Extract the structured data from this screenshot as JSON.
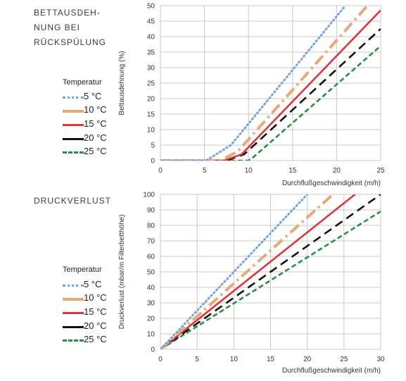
{
  "colors": {
    "c5": "#7ba3db",
    "c10": "#e8a877",
    "c15": "#d9363e",
    "c20": "#111111",
    "c25": "#2e8b45",
    "grid": "#c8c8c8",
    "axis": "#888888"
  },
  "sections": {
    "top_title_lines": [
      "BETTAUSDEH-",
      "NUNG BEI",
      "RÜCKSPÜLUNG"
    ],
    "bottom_title": "DRUCKVERLUST"
  },
  "legend": {
    "title": "Temperatur",
    "items": [
      "5 °C",
      "10 °C",
      "15 °C",
      "20 °C",
      "25 °C"
    ]
  },
  "chart_data": [
    {
      "type": "line",
      "xlabel": "Durchflußgeschwindigkeit (m/h)",
      "ylabel": "Bettausdehnung (%)",
      "xlim": [
        0,
        25
      ],
      "ylim": [
        0,
        50
      ],
      "xticks": [
        "0",
        "5",
        "10",
        "15",
        "20",
        "25"
      ],
      "yticks": [
        "0",
        "5",
        "10",
        "15",
        "20",
        "25",
        "30",
        "35",
        "40",
        "45",
        "50"
      ],
      "grid": true,
      "series": [
        {
          "name": "5 °C",
          "points": [
            [
              0,
              0
            ],
            [
              5.2,
              0
            ],
            [
              8,
              5
            ],
            [
              21,
              50
            ]
          ]
        },
        {
          "name": "10 °C",
          "points": [
            [
              0,
              0
            ],
            [
              6.8,
              0
            ],
            [
              8.8,
              3
            ],
            [
              23.5,
              50
            ]
          ]
        },
        {
          "name": "15 °C",
          "points": [
            [
              0,
              0
            ],
            [
              7.2,
              0
            ],
            [
              9.2,
              2
            ],
            [
              25,
              48.5
            ]
          ]
        },
        {
          "name": "20 °C",
          "points": [
            [
              0,
              0
            ],
            [
              7.5,
              0
            ],
            [
              9.5,
              2
            ],
            [
              25,
              42.5
            ]
          ]
        },
        {
          "name": "25 °C",
          "points": [
            [
              0,
              0
            ],
            [
              10,
              0
            ],
            [
              10.5,
              1
            ],
            [
              25,
              37
            ]
          ]
        }
      ]
    },
    {
      "type": "line",
      "xlabel": "Durchflußgeschwindigkeit (m/h)",
      "ylabel": "Druckverlust  (mbar/m Filterbetthöhe)",
      "xlim": [
        0,
        30
      ],
      "ylim": [
        0,
        100
      ],
      "xticks": [
        "0",
        "5",
        "10",
        "15",
        "20",
        "25",
        "30"
      ],
      "yticks": [
        "0",
        "10",
        "20",
        "30",
        "40",
        "50",
        "60",
        "70",
        "80",
        "90",
        "100"
      ],
      "grid": true,
      "series": [
        {
          "name": "5 °C",
          "points": [
            [
              0,
              0
            ],
            [
              20,
              100
            ]
          ]
        },
        {
          "name": "10 °C",
          "points": [
            [
              0,
              0
            ],
            [
              23.5,
              100
            ]
          ]
        },
        {
          "name": "15 °C",
          "points": [
            [
              0,
              0
            ],
            [
              26.5,
              100
            ]
          ]
        },
        {
          "name": "20 °C",
          "points": [
            [
              0,
              0
            ],
            [
              30,
              100
            ]
          ]
        },
        {
          "name": "25 °C",
          "points": [
            [
              0,
              0
            ],
            [
              30,
              89
            ]
          ]
        }
      ]
    }
  ]
}
